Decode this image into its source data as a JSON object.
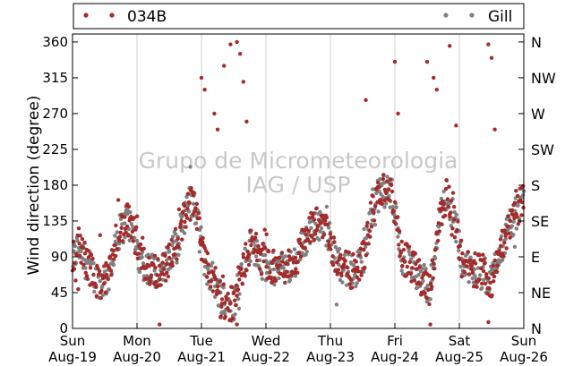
{
  "chart_data": {
    "type": "scatter",
    "ylabel": "Wind direction (degree)",
    "ylim": [
      0,
      370
    ],
    "yticks": [
      0,
      45,
      90,
      135,
      180,
      225,
      270,
      315,
      360
    ],
    "right_ticks": [
      {
        "value": 0,
        "label": "N"
      },
      {
        "value": 45,
        "label": "NE"
      },
      {
        "value": 90,
        "label": "E"
      },
      {
        "value": 135,
        "label": "SE"
      },
      {
        "value": 180,
        "label": "S"
      },
      {
        "value": 225,
        "label": "SW"
      },
      {
        "value": 270,
        "label": "W"
      },
      {
        "value": 315,
        "label": "NW"
      },
      {
        "value": 360,
        "label": "N"
      }
    ],
    "x_ticks": [
      {
        "day": "Sun",
        "date": "Aug-19"
      },
      {
        "day": "Mon",
        "date": "Aug-20"
      },
      {
        "day": "Tue",
        "date": "Aug-21"
      },
      {
        "day": "Wed",
        "date": "Aug-22"
      },
      {
        "day": "Thu",
        "date": "Aug-23"
      },
      {
        "day": "Fri",
        "date": "Aug-24"
      },
      {
        "day": "Sat",
        "date": "Aug-25"
      },
      {
        "day": "Sun",
        "date": "Aug-26"
      }
    ],
    "xlim_days": [
      0,
      7
    ],
    "grid": "vertical",
    "legend_position": "top",
    "watermark": [
      "Grupo de Micrometeorologia",
      "IAG / USP"
    ],
    "series": [
      {
        "name": "034B",
        "color": "#a52a2a"
      },
      {
        "name": "Gill",
        "color": "#808080"
      }
    ],
    "trend_by_day": [
      {
        "x": 0.0,
        "y": 85
      },
      {
        "x": 0.1,
        "y": 105
      },
      {
        "x": 0.2,
        "y": 88
      },
      {
        "x": 0.35,
        "y": 62
      },
      {
        "x": 0.5,
        "y": 58
      },
      {
        "x": 0.6,
        "y": 72
      },
      {
        "x": 0.65,
        "y": 110
      },
      {
        "x": 0.75,
        "y": 125
      },
      {
        "x": 0.85,
        "y": 135
      },
      {
        "x": 0.95,
        "y": 120
      },
      {
        "x": 1.05,
        "y": 85
      },
      {
        "x": 1.2,
        "y": 75
      },
      {
        "x": 1.35,
        "y": 72
      },
      {
        "x": 1.5,
        "y": 85
      },
      {
        "x": 1.65,
        "y": 115
      },
      {
        "x": 1.8,
        "y": 160
      },
      {
        "x": 1.9,
        "y": 150
      },
      {
        "x": 2.05,
        "y": 80
      },
      {
        "x": 2.2,
        "y": 60
      },
      {
        "x": 2.35,
        "y": 35
      },
      {
        "x": 2.5,
        "y": 30
      },
      {
        "x": 2.6,
        "y": 65
      },
      {
        "x": 2.75,
        "y": 105
      },
      {
        "x": 2.85,
        "y": 100
      },
      {
        "x": 3.0,
        "y": 80
      },
      {
        "x": 3.15,
        "y": 75
      },
      {
        "x": 3.3,
        "y": 78
      },
      {
        "x": 3.45,
        "y": 85
      },
      {
        "x": 3.6,
        "y": 110
      },
      {
        "x": 3.75,
        "y": 130
      },
      {
        "x": 3.9,
        "y": 135
      },
      {
        "x": 4.1,
        "y": 85
      },
      {
        "x": 4.25,
        "y": 75
      },
      {
        "x": 4.4,
        "y": 70
      },
      {
        "x": 4.55,
        "y": 100
      },
      {
        "x": 4.65,
        "y": 150
      },
      {
        "x": 4.8,
        "y": 175
      },
      {
        "x": 4.95,
        "y": 170
      },
      {
        "x": 5.1,
        "y": 90
      },
      {
        "x": 5.25,
        "y": 80
      },
      {
        "x": 5.4,
        "y": 65
      },
      {
        "x": 5.55,
        "y": 50
      },
      {
        "x": 5.65,
        "y": 120
      },
      {
        "x": 5.8,
        "y": 170
      },
      {
        "x": 5.95,
        "y": 130
      },
      {
        "x": 6.05,
        "y": 80
      },
      {
        "x": 6.2,
        "y": 75
      },
      {
        "x": 6.35,
        "y": 70
      },
      {
        "x": 6.5,
        "y": 60
      },
      {
        "x": 6.6,
        "y": 95
      },
      {
        "x": 6.75,
        "y": 120
      },
      {
        "x": 6.9,
        "y": 150
      },
      {
        "x": 7.0,
        "y": 160
      }
    ],
    "outliers": [
      {
        "x": 2.0,
        "y": 315
      },
      {
        "x": 2.05,
        "y": 300
      },
      {
        "x": 2.35,
        "y": 330
      },
      {
        "x": 2.45,
        "y": 357
      },
      {
        "x": 2.55,
        "y": 360
      },
      {
        "x": 2.6,
        "y": 345
      },
      {
        "x": 2.65,
        "y": 310
      },
      {
        "x": 2.7,
        "y": 260
      },
      {
        "x": 2.2,
        "y": 270
      },
      {
        "x": 2.25,
        "y": 250
      },
      {
        "x": 4.55,
        "y": 287
      },
      {
        "x": 5.0,
        "y": 335
      },
      {
        "x": 5.05,
        "y": 270
      },
      {
        "x": 5.5,
        "y": 335
      },
      {
        "x": 5.6,
        "y": 315
      },
      {
        "x": 5.65,
        "y": 300
      },
      {
        "x": 5.85,
        "y": 355
      },
      {
        "x": 5.95,
        "y": 255
      },
      {
        "x": 6.45,
        "y": 357
      },
      {
        "x": 6.5,
        "y": 340
      },
      {
        "x": 6.55,
        "y": 250
      },
      {
        "x": 2.45,
        "y": 10
      },
      {
        "x": 2.55,
        "y": 5
      },
      {
        "x": 5.55,
        "y": 5
      },
      {
        "x": 6.45,
        "y": 8
      },
      {
        "x": 1.35,
        "y": 5
      },
      {
        "x": 2.3,
        "y": 15
      }
    ]
  }
}
